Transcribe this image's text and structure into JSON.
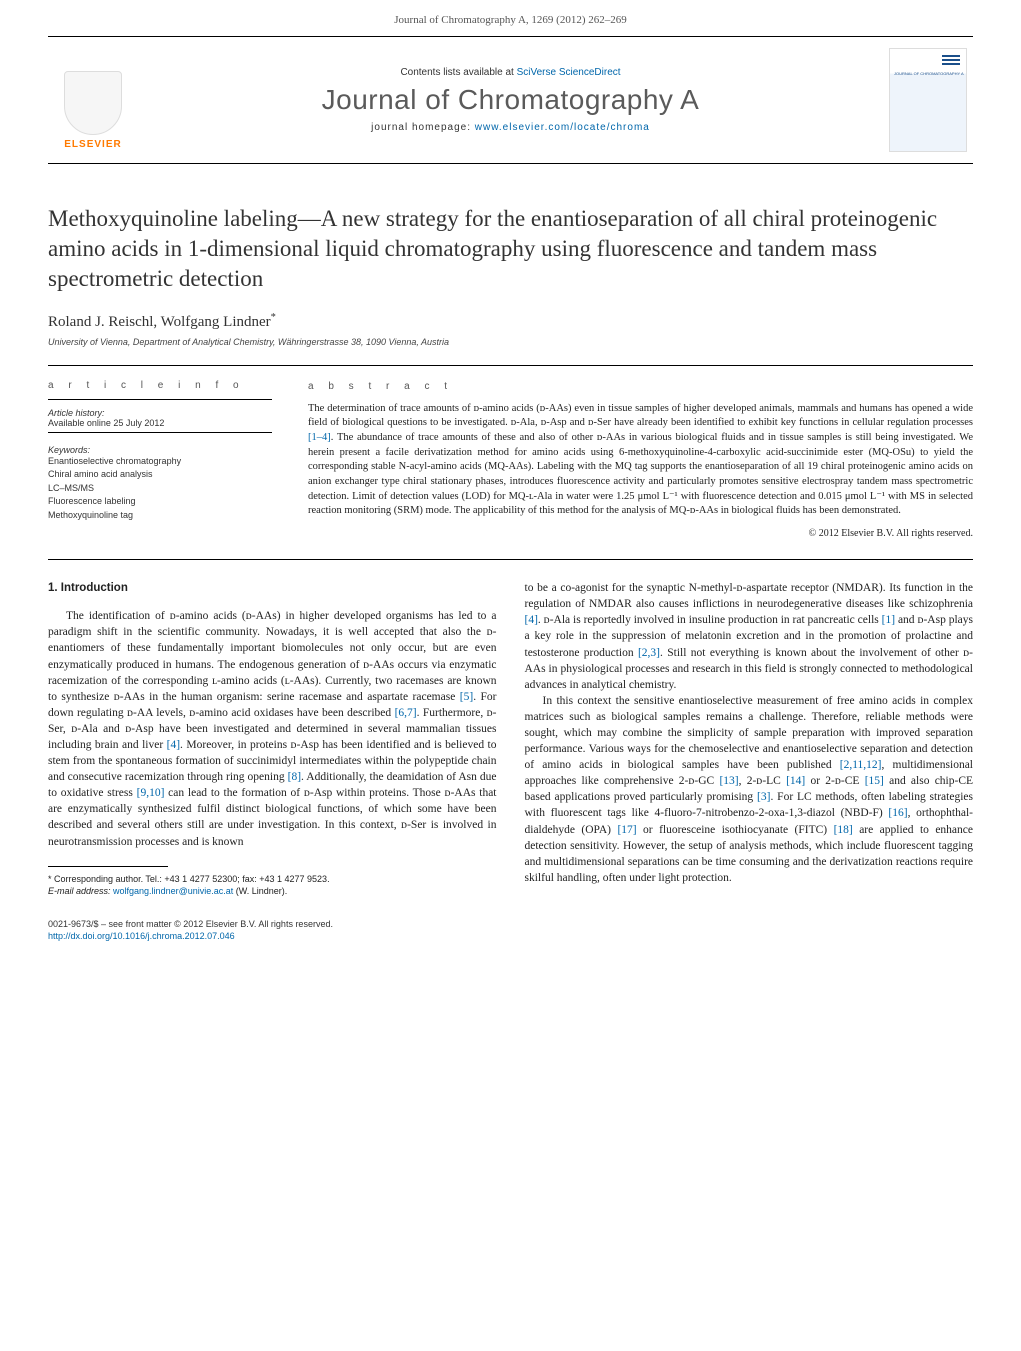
{
  "running_head": "Journal of Chromatography A, 1269 (2012) 262–269",
  "masthead": {
    "publisher": "ELSEVIER",
    "contents_prefix": "Contents lists available at ",
    "contents_link": "SciVerse ScienceDirect",
    "journal": "Journal of Chromatography A",
    "homepage_prefix": "journal homepage: ",
    "homepage_url": "www.elsevier.com/locate/chroma",
    "cover_text": "JOURNAL OF CHROMATOGRAPHY A"
  },
  "article": {
    "title": "Methoxyquinoline labeling—A new strategy for the enantioseparation of all chiral proteinogenic amino acids in 1-dimensional liquid chromatography using fluorescence and tandem mass spectrometric detection",
    "authors": "Roland J. Reischl, Wolfgang Lindner",
    "author_marker": "*",
    "affiliation": "University of Vienna, Department of Analytical Chemistry, Währingerstrasse 38, 1090 Vienna, Austria"
  },
  "info": {
    "heading": "a r t i c l e   i n f o",
    "history_label": "Article history:",
    "history_value": "Available online 25 July 2012",
    "keywords_label": "Keywords:",
    "keywords": [
      "Enantioselective chromatography",
      "Chiral amino acid analysis",
      "LC–MS/MS",
      "Fluorescence labeling",
      "Methoxyquinoline tag"
    ]
  },
  "abstract": {
    "heading": "a b s t r a c t",
    "text_1": "The determination of trace amounts of ᴅ-amino acids (ᴅ-AAs) even in tissue samples of higher developed animals, mammals and humans has opened a wide field of biological questions to be investigated. ᴅ-Ala, ᴅ-Asp and ᴅ-Ser have already been identified to exhibit key functions in cellular regulation processes ",
    "ref_1": "[1–4]",
    "text_2": ". The abundance of trace amounts of these and also of other ᴅ-AAs in various biological fluids and in tissue samples is still being investigated. We herein present a facile derivatization method for amino acids using 6-methoxyquinoline-4-carboxylic acid-succinimide ester (MQ-OSu) to yield the corresponding stable N-acyl-amino acids (MQ-AAs). Labeling with the MQ tag supports the enantioseparation of all 19 chiral proteinogenic amino acids on anion exchanger type chiral stationary phases, introduces fluorescence activity and particularly promotes sensitive electrospray tandem mass spectrometric detection. Limit of detection values (LOD) for MQ-ʟ-Ala in water were 1.25 μmol L⁻¹ with fluorescence detection and 0.015 μmol L⁻¹ with MS in selected reaction monitoring (SRM) mode. The applicability of this method for the analysis of MQ-ᴅ-AAs in biological fluids has been demonstrated.",
    "copyright": "© 2012 Elsevier B.V. All rights reserved."
  },
  "body": {
    "section_heading": "1.  Introduction",
    "col1_p1_a": "The identification of ᴅ-amino acids (ᴅ-AAs) in higher developed organisms has led to a paradigm shift in the scientific community. Nowadays, it is well accepted that also the ᴅ-enantiomers of these fundamentally important biomolecules not only occur, but are even enzymatically produced in humans. The endogenous generation of ᴅ-AAs occurs via enzymatic racemization of the corresponding ʟ-amino acids (ʟ-AAs). Currently, two racemases are known to synthesize ᴅ-AAs in the human organism: serine racemase and aspartate racemase ",
    "col1_r1": "[5]",
    "col1_p1_b": ". For down regulating ᴅ-AA levels, ᴅ-amino acid oxidases have been described ",
    "col1_r2": "[6,7]",
    "col1_p1_c": ". Furthermore, ᴅ-Ser, ᴅ-Ala and ᴅ-Asp have been investigated and determined in several mammalian tissues including brain and liver ",
    "col1_r3": "[4]",
    "col1_p1_d": ". Moreover, in proteins ᴅ-Asp has been identified and is believed to stem from the spontaneous formation of succinimidyl intermediates within the polypeptide chain and consecutive racemization through ring opening ",
    "col1_r4": "[8]",
    "col1_p1_e": ". Additionally, the deamidation of Asn due to oxidative stress ",
    "col1_r5": "[9,10]",
    "col1_p1_f": " can lead to the formation of ᴅ-Asp within proteins. Those ᴅ-AAs that are enzymatically synthesized fulfil distinct biological functions, of which some have been described and several others still are under investigation. In this context, ᴅ-Ser is involved in neurotransmission processes and is known",
    "col2_p1_a": "to be a co-agonist for the synaptic N-methyl-ᴅ-aspartate receptor (NMDAR). Its function in the regulation of NMDAR also causes inflictions in neurodegenerative diseases like schizophrenia ",
    "col2_r1": "[4]",
    "col2_p1_b": ". ᴅ-Ala is reportedly involved in insuline production in rat pancreatic cells ",
    "col2_r2": "[1]",
    "col2_p1_c": " and ᴅ-Asp plays a key role in the suppression of melatonin excretion and in the promotion of prolactine and testosterone production ",
    "col2_r3": "[2,3]",
    "col2_p1_d": ". Still not everything is known about the involvement of other ᴅ-AAs in physiological processes and research in this field is strongly connected to methodological advances in analytical chemistry.",
    "col2_p2_a": "In this context the sensitive enantioselective measurement of free amino acids in complex matrices such as biological samples remains a challenge. Therefore, reliable methods were sought, which may combine the simplicity of sample preparation with improved separation performance. Various ways for the chemoselective and enantioselective separation and detection of amino acids in biological samples have been published ",
    "col2_r4": "[2,11,12]",
    "col2_p2_b": ", multidimensional approaches like comprehensive 2-ᴅ-GC ",
    "col2_r5": "[13]",
    "col2_p2_c": ", 2-ᴅ-LC ",
    "col2_r6": "[14]",
    "col2_p2_d": " or 2-ᴅ-CE ",
    "col2_r7": "[15]",
    "col2_p2_e": " and also chip-CE based applications proved particularly promising ",
    "col2_r8": "[3]",
    "col2_p2_f": ". For LC methods, often labeling strategies with fluorescent tags like 4-fluoro-7-nitrobenzo-2-oxa-1,3-diazol (NBD-F) ",
    "col2_r9": "[16]",
    "col2_p2_g": ", orthophthal-dialdehyde (OPA) ",
    "col2_r10": "[17]",
    "col2_p2_h": " or fluoresceine isothiocyanate (FITC) ",
    "col2_r11": "[18]",
    "col2_p2_i": " are applied to enhance detection sensitivity. However, the setup of analysis methods, which include fluorescent tagging and multidimensional separations can be time consuming and the derivatization reactions require skilful handling, often under light protection."
  },
  "footnote": {
    "marker": "*",
    "line1": " Corresponding author. Tel.: +43 1 4277 52300; fax: +43 1 4277 9523.",
    "line2_label": "E-mail address: ",
    "line2_email": "wolfgang.lindner@univie.ac.at",
    "line2_tail": " (W. Lindner)."
  },
  "footer": {
    "line1": "0021-9673/$ – see front matter © 2012 Elsevier B.V. All rights reserved.",
    "doi": "http://dx.doi.org/10.1016/j.chroma.2012.07.046"
  },
  "colors": {
    "link": "#0066aa",
    "publisher_orange": "#ff7a00",
    "text": "#222222",
    "heading_gray": "#5a5a5a"
  }
}
